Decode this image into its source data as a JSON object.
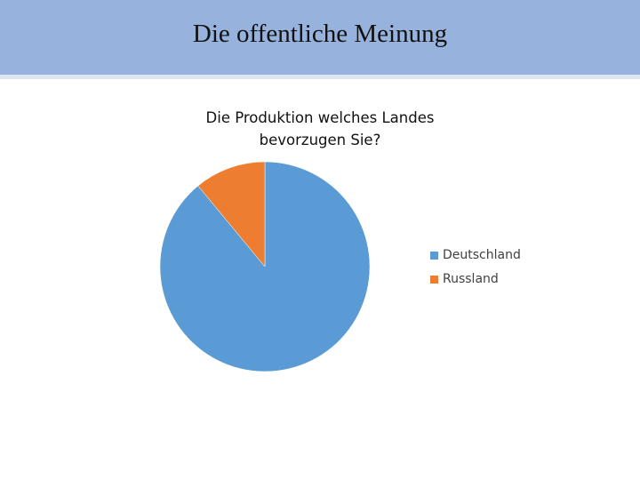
{
  "slide": {
    "title": "Die offentliche Meinung"
  },
  "chart_data": {
    "type": "pie",
    "title_lines": [
      "Die Produktion welches Landes",
      "bevorzugen Sie?"
    ],
    "categories": [
      "Deutschland",
      "Russland"
    ],
    "values": [
      89,
      11
    ],
    "colors": [
      "#5b9bd5",
      "#ed7d31"
    ],
    "legend": "right"
  }
}
